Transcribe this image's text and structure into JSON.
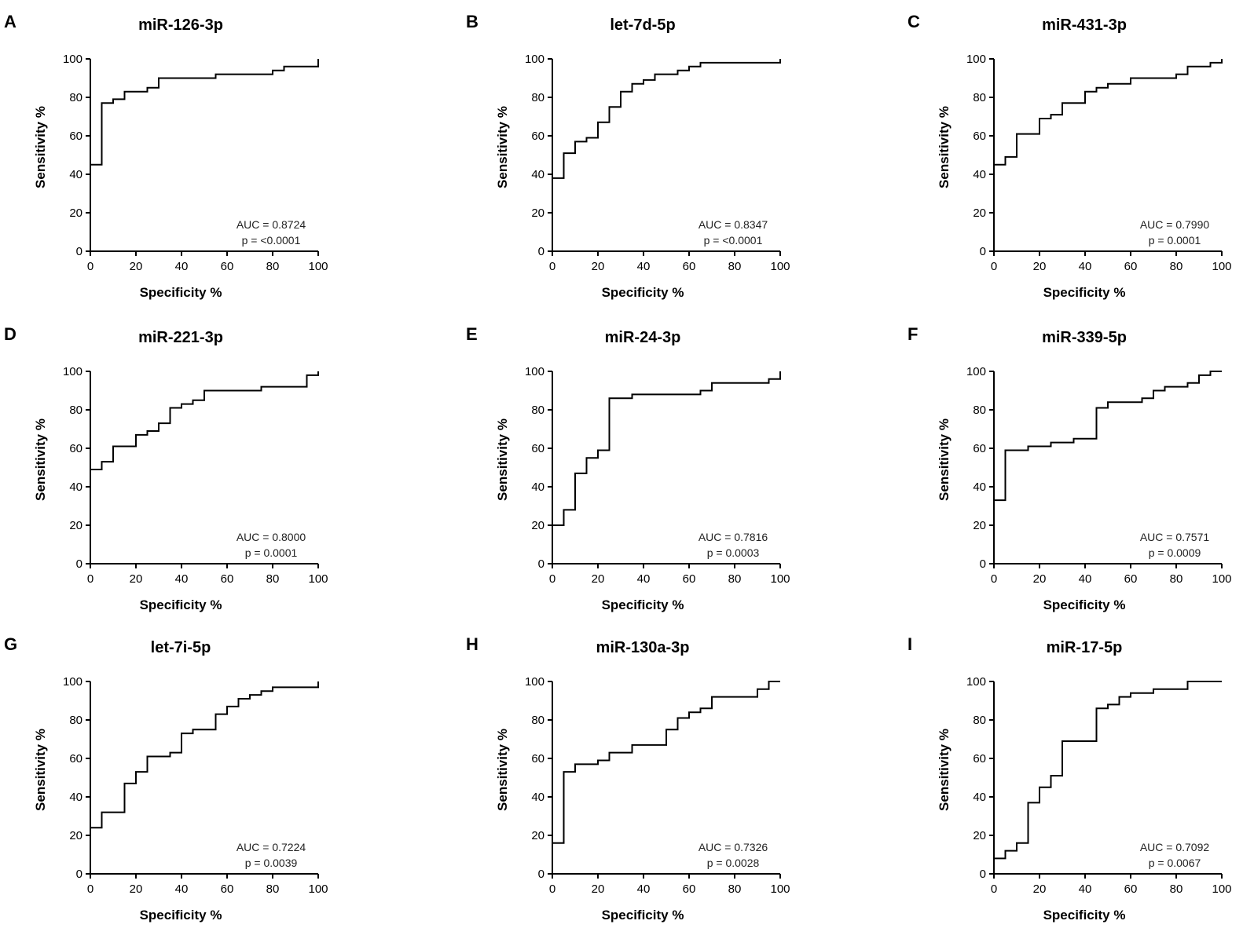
{
  "chart_data": [
    {
      "type": "line",
      "panel_label": "A",
      "title": "miR-126-3p",
      "xlabel": "Specificity %",
      "ylabel": "Sensitivity %",
      "xlim": [
        0,
        100
      ],
      "ylim": [
        0,
        100
      ],
      "xticks": [
        "0",
        "20",
        "40",
        "60",
        "80",
        "100"
      ],
      "yticks": [
        "0",
        "20",
        "40",
        "60",
        "80",
        "100"
      ],
      "auc_text": "AUC = 0.8724",
      "p_text": "p = <0.0001",
      "x": [
        0,
        5,
        5,
        10,
        10,
        15,
        15,
        25,
        25,
        30,
        30,
        55,
        55,
        80,
        80,
        85,
        85,
        100,
        100
      ],
      "y": [
        45,
        45,
        77,
        77,
        79,
        79,
        83,
        83,
        85,
        85,
        90,
        90,
        92,
        92,
        94,
        94,
        96,
        96,
        100
      ]
    },
    {
      "type": "line",
      "panel_label": "B",
      "title": "let-7d-5p",
      "xlabel": "Specificity %",
      "ylabel": "Sensitivity %",
      "xlim": [
        0,
        100
      ],
      "ylim": [
        0,
        100
      ],
      "xticks": [
        "0",
        "20",
        "40",
        "60",
        "80",
        "100"
      ],
      "yticks": [
        "0",
        "20",
        "40",
        "60",
        "80",
        "100"
      ],
      "auc_text": "AUC = 0.8347",
      "p_text": "p = <0.0001",
      "x": [
        0,
        5,
        5,
        10,
        10,
        15,
        15,
        20,
        20,
        25,
        25,
        30,
        30,
        35,
        35,
        40,
        40,
        45,
        45,
        55,
        55,
        60,
        60,
        65,
        65,
        100,
        100
      ],
      "y": [
        38,
        38,
        51,
        51,
        57,
        57,
        59,
        59,
        67,
        67,
        75,
        75,
        83,
        83,
        87,
        87,
        89,
        89,
        92,
        92,
        94,
        94,
        96,
        96,
        98,
        98,
        100
      ]
    },
    {
      "type": "line",
      "panel_label": "C",
      "title": "miR-431-3p",
      "xlabel": "Specificity %",
      "ylabel": "Sensitivity %",
      "xlim": [
        0,
        100
      ],
      "ylim": [
        0,
        100
      ],
      "xticks": [
        "0",
        "20",
        "40",
        "60",
        "80",
        "100"
      ],
      "yticks": [
        "0",
        "20",
        "40",
        "60",
        "80",
        "100"
      ],
      "auc_text": "AUC = 0.7990",
      "p_text": "p = 0.0001",
      "x": [
        0,
        5,
        5,
        10,
        10,
        20,
        20,
        25,
        25,
        30,
        30,
        40,
        40,
        45,
        45,
        50,
        50,
        60,
        60,
        80,
        80,
        85,
        85,
        95,
        95,
        100,
        100
      ],
      "y": [
        45,
        45,
        49,
        49,
        61,
        61,
        69,
        69,
        71,
        71,
        77,
        77,
        83,
        83,
        85,
        85,
        87,
        87,
        90,
        90,
        92,
        92,
        96,
        96,
        98,
        98,
        100
      ]
    },
    {
      "type": "line",
      "panel_label": "D",
      "title": "miR-221-3p",
      "xlabel": "Specificity %",
      "ylabel": "Sensitivity %",
      "xlim": [
        0,
        100
      ],
      "ylim": [
        0,
        100
      ],
      "xticks": [
        "0",
        "20",
        "40",
        "60",
        "80",
        "100"
      ],
      "yticks": [
        "0",
        "20",
        "40",
        "60",
        "80",
        "100"
      ],
      "auc_text": "AUC = 0.8000",
      "p_text": "p = 0.0001",
      "x": [
        0,
        5,
        5,
        10,
        10,
        20,
        20,
        25,
        25,
        30,
        30,
        35,
        35,
        40,
        40,
        45,
        45,
        50,
        50,
        75,
        75,
        95,
        95,
        100,
        100
      ],
      "y": [
        49,
        49,
        53,
        53,
        61,
        61,
        67,
        67,
        69,
        69,
        73,
        73,
        81,
        81,
        83,
        83,
        85,
        85,
        90,
        90,
        92,
        92,
        98,
        98,
        100
      ]
    },
    {
      "type": "line",
      "panel_label": "E",
      "title": "miR-24-3p",
      "xlabel": "Specificity %",
      "ylabel": "Sensitivity %",
      "xlim": [
        0,
        100
      ],
      "ylim": [
        0,
        100
      ],
      "xticks": [
        "0",
        "20",
        "40",
        "60",
        "80",
        "100"
      ],
      "yticks": [
        "0",
        "20",
        "40",
        "60",
        "80",
        "100"
      ],
      "auc_text": "AUC = 0.7816",
      "p_text": "p = 0.0003",
      "x": [
        0,
        5,
        5,
        10,
        10,
        15,
        15,
        20,
        20,
        25,
        25,
        35,
        35,
        65,
        65,
        70,
        70,
        95,
        95,
        100,
        100
      ],
      "y": [
        20,
        20,
        28,
        28,
        47,
        47,
        55,
        55,
        59,
        59,
        86,
        86,
        88,
        88,
        90,
        90,
        94,
        94,
        96,
        96,
        100
      ]
    },
    {
      "type": "line",
      "panel_label": "F",
      "title": "miR-339-5p",
      "xlabel": "Specificity %",
      "ylabel": "Sensitivity %",
      "xlim": [
        0,
        100
      ],
      "ylim": [
        0,
        100
      ],
      "xticks": [
        "0",
        "20",
        "40",
        "60",
        "80",
        "100"
      ],
      "yticks": [
        "0",
        "20",
        "40",
        "60",
        "80",
        "100"
      ],
      "auc_text": "AUC = 0.7571",
      "p_text": "p = 0.0009",
      "x": [
        0,
        5,
        5,
        15,
        15,
        25,
        25,
        35,
        35,
        45,
        45,
        50,
        50,
        65,
        65,
        70,
        70,
        75,
        75,
        85,
        85,
        90,
        90,
        95,
        95,
        100
      ],
      "y": [
        33,
        33,
        59,
        59,
        61,
        61,
        63,
        63,
        65,
        65,
        81,
        81,
        84,
        84,
        86,
        86,
        90,
        90,
        92,
        92,
        94,
        94,
        98,
        98,
        100,
        100
      ]
    },
    {
      "type": "line",
      "panel_label": "G",
      "title": "let-7i-5p",
      "xlabel": "Specificity %",
      "ylabel": "Sensitivity %",
      "xlim": [
        0,
        100
      ],
      "ylim": [
        0,
        100
      ],
      "xticks": [
        "0",
        "20",
        "40",
        "60",
        "80",
        "100"
      ],
      "yticks": [
        "0",
        "20",
        "40",
        "60",
        "80",
        "100"
      ],
      "auc_text": "AUC = 0.7224",
      "p_text": "p = 0.0039",
      "x": [
        0,
        0,
        5,
        5,
        15,
        15,
        20,
        20,
        25,
        25,
        35,
        35,
        40,
        40,
        45,
        45,
        55,
        55,
        60,
        60,
        65,
        65,
        70,
        70,
        75,
        75,
        80,
        80,
        100,
        100
      ],
      "y": [
        0,
        24,
        24,
        32,
        32,
        47,
        47,
        53,
        53,
        61,
        61,
        63,
        63,
        73,
        73,
        75,
        75,
        83,
        83,
        87,
        87,
        91,
        91,
        93,
        93,
        95,
        95,
        97,
        97,
        100
      ]
    },
    {
      "type": "line",
      "panel_label": "H",
      "title": "miR-130a-3p",
      "xlabel": "Specificity %",
      "ylabel": "Sensitivity %",
      "xlim": [
        0,
        100
      ],
      "ylim": [
        0,
        100
      ],
      "xticks": [
        "0",
        "20",
        "40",
        "60",
        "80",
        "100"
      ],
      "yticks": [
        "0",
        "20",
        "40",
        "60",
        "80",
        "100"
      ],
      "auc_text": "AUC = 0.7326",
      "p_text": "p = 0.0028",
      "x": [
        0,
        5,
        5,
        10,
        10,
        20,
        20,
        25,
        25,
        35,
        35,
        50,
        50,
        55,
        55,
        60,
        60,
        65,
        65,
        70,
        70,
        90,
        90,
        95,
        95,
        100
      ],
      "y": [
        16,
        16,
        53,
        53,
        57,
        57,
        59,
        59,
        63,
        63,
        67,
        67,
        75,
        75,
        81,
        81,
        84,
        84,
        86,
        86,
        92,
        92,
        96,
        96,
        100,
        100
      ]
    },
    {
      "type": "line",
      "panel_label": "I",
      "title": "miR-17-5p",
      "xlabel": "Specificity %",
      "ylabel": "Sensitivity %",
      "xlim": [
        0,
        100
      ],
      "ylim": [
        0,
        100
      ],
      "xticks": [
        "0",
        "20",
        "40",
        "60",
        "80",
        "100"
      ],
      "yticks": [
        "0",
        "20",
        "40",
        "60",
        "80",
        "100"
      ],
      "auc_text": "AUC = 0.7092",
      "p_text": "p = 0.0067",
      "x": [
        0,
        5,
        5,
        10,
        10,
        15,
        15,
        20,
        20,
        25,
        25,
        30,
        30,
        45,
        45,
        50,
        50,
        55,
        55,
        60,
        60,
        70,
        70,
        85,
        85,
        100
      ],
      "y": [
        8,
        8,
        12,
        12,
        16,
        16,
        37,
        37,
        45,
        45,
        51,
        51,
        69,
        69,
        86,
        86,
        88,
        88,
        92,
        92,
        94,
        94,
        96,
        96,
        100,
        100
      ]
    }
  ]
}
